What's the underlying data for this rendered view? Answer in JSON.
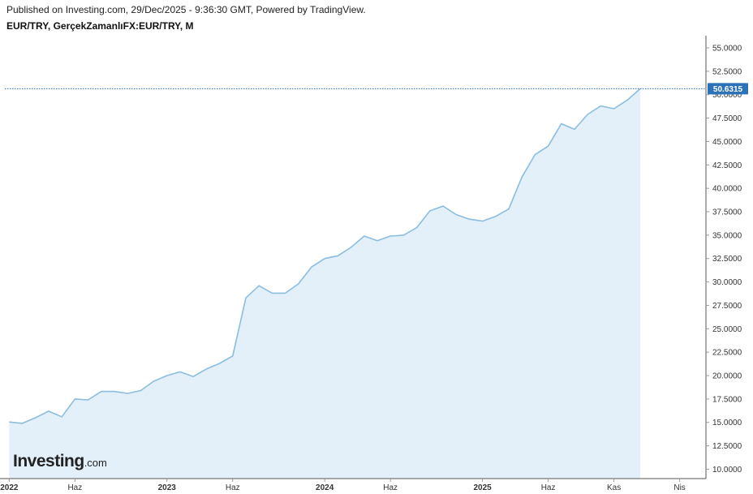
{
  "header": {
    "published": "Published on Investing.com, 29/Dec/2025 - 9:36:30 GMT, Powered by TradingView.",
    "symbol": "EUR/TRY, GerçekZamanlıFX:EUR/TRY, M"
  },
  "logo": {
    "main": "Investing",
    "suffix": ".com"
  },
  "colors": {
    "line": "#8bbde0",
    "fill": "#e3f0fa",
    "last_price_box": "#2c72b8",
    "last_price_line": "#2c72b8",
    "axis": "#555555",
    "tick": "#999999"
  },
  "chart_data": {
    "type": "area",
    "title": "EUR/TRY, GerçekZamanlıFX:EUR/TRY, M",
    "ylim": [
      9.0,
      56.3
    ],
    "y_ticks": [
      "55.0000",
      "52.5000",
      "50.0000",
      "47.5000",
      "45.0000",
      "42.5000",
      "40.0000",
      "37.5000",
      "35.0000",
      "32.5000",
      "30.0000",
      "27.5000",
      "25.0000",
      "22.5000",
      "20.0000",
      "17.5000",
      "15.0000",
      "12.5000",
      "10.0000"
    ],
    "x_ticks": [
      {
        "label": "2022",
        "month": 0,
        "bold": true
      },
      {
        "label": "Haz",
        "month": 5,
        "bold": false
      },
      {
        "label": "2023",
        "month": 12,
        "bold": true
      },
      {
        "label": "Haz",
        "month": 17,
        "bold": false
      },
      {
        "label": "2024",
        "month": 24,
        "bold": true
      },
      {
        "label": "Haz",
        "month": 29,
        "bold": false
      },
      {
        "label": "2025",
        "month": 36,
        "bold": true
      },
      {
        "label": "Haz",
        "month": 41,
        "bold": false
      },
      {
        "label": "Kas",
        "month": 46,
        "bold": false
      },
      {
        "label": "Nis",
        "month": 51,
        "bold": false
      }
    ],
    "x_range": [
      -0.33,
      53
    ],
    "series": [
      {
        "values": [
          15.05,
          14.9,
          15.5,
          16.2,
          15.6,
          17.5,
          17.4,
          18.3,
          18.3,
          18.1,
          18.4,
          19.4,
          20.0,
          20.4,
          19.9,
          20.7,
          21.3,
          22.1,
          28.3,
          29.6,
          28.8,
          28.8,
          29.8,
          31.6,
          32.5,
          32.8,
          33.7,
          34.9,
          34.4,
          34.9,
          35.0,
          35.8,
          37.6,
          38.1,
          37.2,
          36.7,
          36.5,
          37.0,
          37.8,
          41.2,
          43.6,
          44.5,
          46.9,
          46.3,
          47.9,
          48.8,
          48.5,
          49.4,
          50.6315
        ]
      }
    ],
    "last_price": "50.6315"
  }
}
